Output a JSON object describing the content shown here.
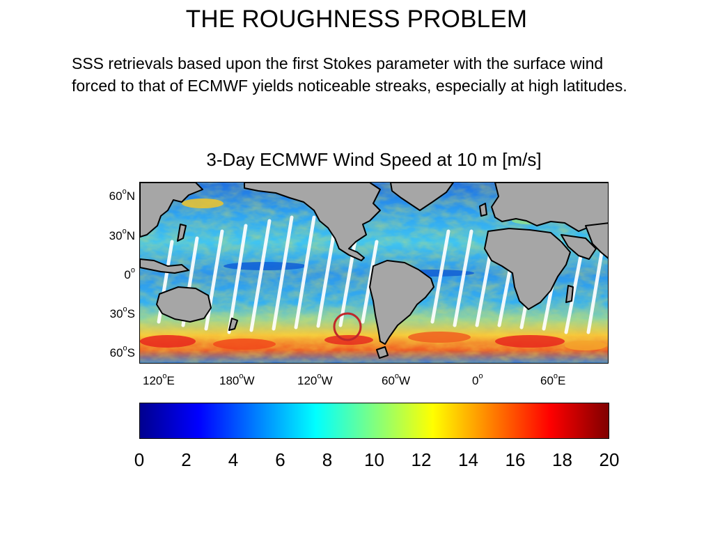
{
  "slide": {
    "title": "THE ROUGHNESS PROBLEM",
    "body": "SSS retrievals based upon the first Stokes parameter with the surface wind forced to that of ECMWF yields noticeable streaks, especially at high latitudes."
  },
  "figure": {
    "title": "3-Day ECMWF Wind Speed at 10 m [m/s]",
    "lat_ticks": [
      {
        "num": "60",
        "deg": "o",
        "hemi": "N"
      },
      {
        "num": "30",
        "deg": "o",
        "hemi": "N"
      },
      {
        "num": "0",
        "deg": "o",
        "hemi": ""
      },
      {
        "num": "30",
        "deg": "o",
        "hemi": "S"
      },
      {
        "num": "60",
        "deg": "o",
        "hemi": "S"
      }
    ],
    "lon_ticks": [
      {
        "num": "120",
        "deg": "o",
        "hemi": "E"
      },
      {
        "num": "180",
        "deg": "o",
        "hemi": "W"
      },
      {
        "num": "120",
        "deg": "o",
        "hemi": "W"
      },
      {
        "num": "60",
        "deg": "o",
        "hemi": "W"
      },
      {
        "num": "0",
        "deg": "o",
        "hemi": ""
      },
      {
        "num": "60",
        "deg": "o",
        "hemi": "E"
      }
    ],
    "colorbar": {
      "min": 0,
      "max": 20,
      "colormap": "jet",
      "ticks": [
        "0",
        "2",
        "4",
        "6",
        "8",
        "10",
        "12",
        "14",
        "16",
        "18",
        "20"
      ]
    },
    "colors": {
      "land": "#a6a6a6",
      "coastline": "#000000",
      "swath_gap": "#ffffff",
      "highlight_circle": "#c0282a"
    }
  }
}
